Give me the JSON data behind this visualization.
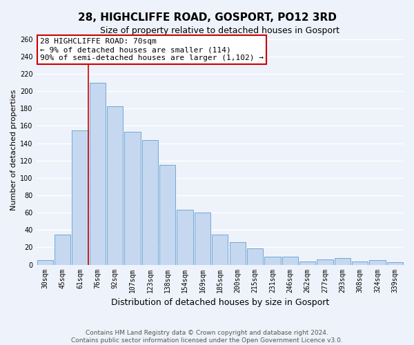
{
  "title": "28, HIGHCLIFFE ROAD, GOSPORT, PO12 3RD",
  "subtitle": "Size of property relative to detached houses in Gosport",
  "xlabel": "Distribution of detached houses by size in Gosport",
  "ylabel": "Number of detached properties",
  "categories": [
    "30sqm",
    "45sqm",
    "61sqm",
    "76sqm",
    "92sqm",
    "107sqm",
    "123sqm",
    "138sqm",
    "154sqm",
    "169sqm",
    "185sqm",
    "200sqm",
    "215sqm",
    "231sqm",
    "246sqm",
    "262sqm",
    "277sqm",
    "293sqm",
    "308sqm",
    "324sqm",
    "339sqm"
  ],
  "values": [
    5,
    35,
    155,
    210,
    183,
    153,
    144,
    115,
    63,
    60,
    35,
    26,
    19,
    9,
    9,
    4,
    6,
    8,
    4,
    5,
    3
  ],
  "bar_color": "#c5d8f0",
  "bar_edge_color": "#6fa8d4",
  "annotation_text_line1": "28 HIGHCLIFFE ROAD: 70sqm",
  "annotation_text_line2": "← 9% of detached houses are smaller (114)",
  "annotation_text_line3": "90% of semi-detached houses are larger (1,102) →",
  "annotation_box_facecolor": "#ffffff",
  "annotation_box_edgecolor": "#cc0000",
  "vline_color": "#cc0000",
  "vline_x_index": 2,
  "ylim_max": 265,
  "yticks": [
    0,
    20,
    40,
    60,
    80,
    100,
    120,
    140,
    160,
    180,
    200,
    220,
    240,
    260
  ],
  "footer_line1": "Contains HM Land Registry data © Crown copyright and database right 2024.",
  "footer_line2": "Contains public sector information licensed under the Open Government Licence v3.0.",
  "bg_color": "#eef2fa",
  "grid_color": "#ffffff",
  "title_fontsize": 11,
  "subtitle_fontsize": 9,
  "xlabel_fontsize": 9,
  "ylabel_fontsize": 8,
  "tick_fontsize": 7,
  "annotation_fontsize": 8,
  "footer_fontsize": 6.5
}
